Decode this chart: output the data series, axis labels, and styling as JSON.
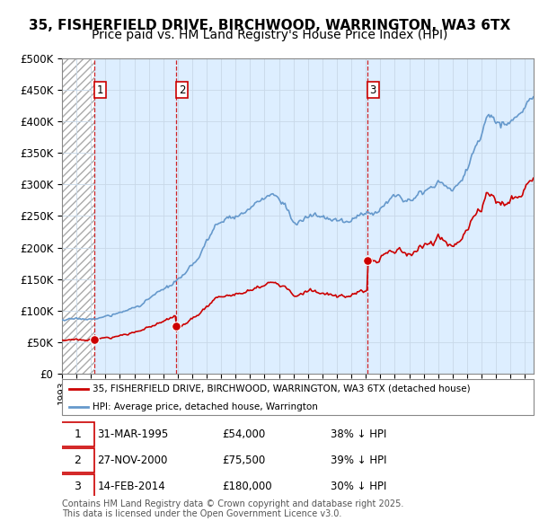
{
  "title": "35, FISHERFIELD DRIVE, BIRCHWOOD, WARRINGTON, WA3 6TX",
  "subtitle": "Price paid vs. HM Land Registry's House Price Index (HPI)",
  "ylim": [
    0,
    500000
  ],
  "yticks": [
    0,
    50000,
    100000,
    150000,
    200000,
    250000,
    300000,
    350000,
    400000,
    450000,
    500000
  ],
  "ytick_labels": [
    "£0",
    "£50K",
    "£100K",
    "£150K",
    "£200K",
    "£250K",
    "£300K",
    "£350K",
    "£400K",
    "£450K",
    "£500K"
  ],
  "xlim_start": 1993.0,
  "xlim_end": 2025.6,
  "sale_color": "#cc0000",
  "hpi_color": "#6699cc",
  "sale_label": "35, FISHERFIELD DRIVE, BIRCHWOOD, WARRINGTON, WA3 6TX (detached house)",
  "hpi_label": "HPI: Average price, detached house, Warrington",
  "sales": [
    {
      "date_num": 1995.24,
      "price": 54000,
      "label": "1"
    },
    {
      "date_num": 2000.91,
      "price": 75500,
      "label": "2"
    },
    {
      "date_num": 2014.12,
      "price": 180000,
      "label": "3"
    }
  ],
  "sale_table": [
    {
      "num": "1",
      "date": "31-MAR-1995",
      "price": "£54,000",
      "info": "38% ↓ HPI"
    },
    {
      "num": "2",
      "date": "27-NOV-2000",
      "price": "£75,500",
      "info": "39% ↓ HPI"
    },
    {
      "num": "3",
      "date": "14-FEB-2014",
      "price": "£180,000",
      "info": "30% ↓ HPI"
    }
  ],
  "footer": "Contains HM Land Registry data © Crown copyright and database right 2025.\nThis data is licensed under the Open Government Licence v3.0.",
  "bg_hatch_color": "#cccccc",
  "bg_fill_color": "#ddeeff",
  "grid_color": "#c8d8e8",
  "title_fontsize": 11,
  "subtitle_fontsize": 10
}
